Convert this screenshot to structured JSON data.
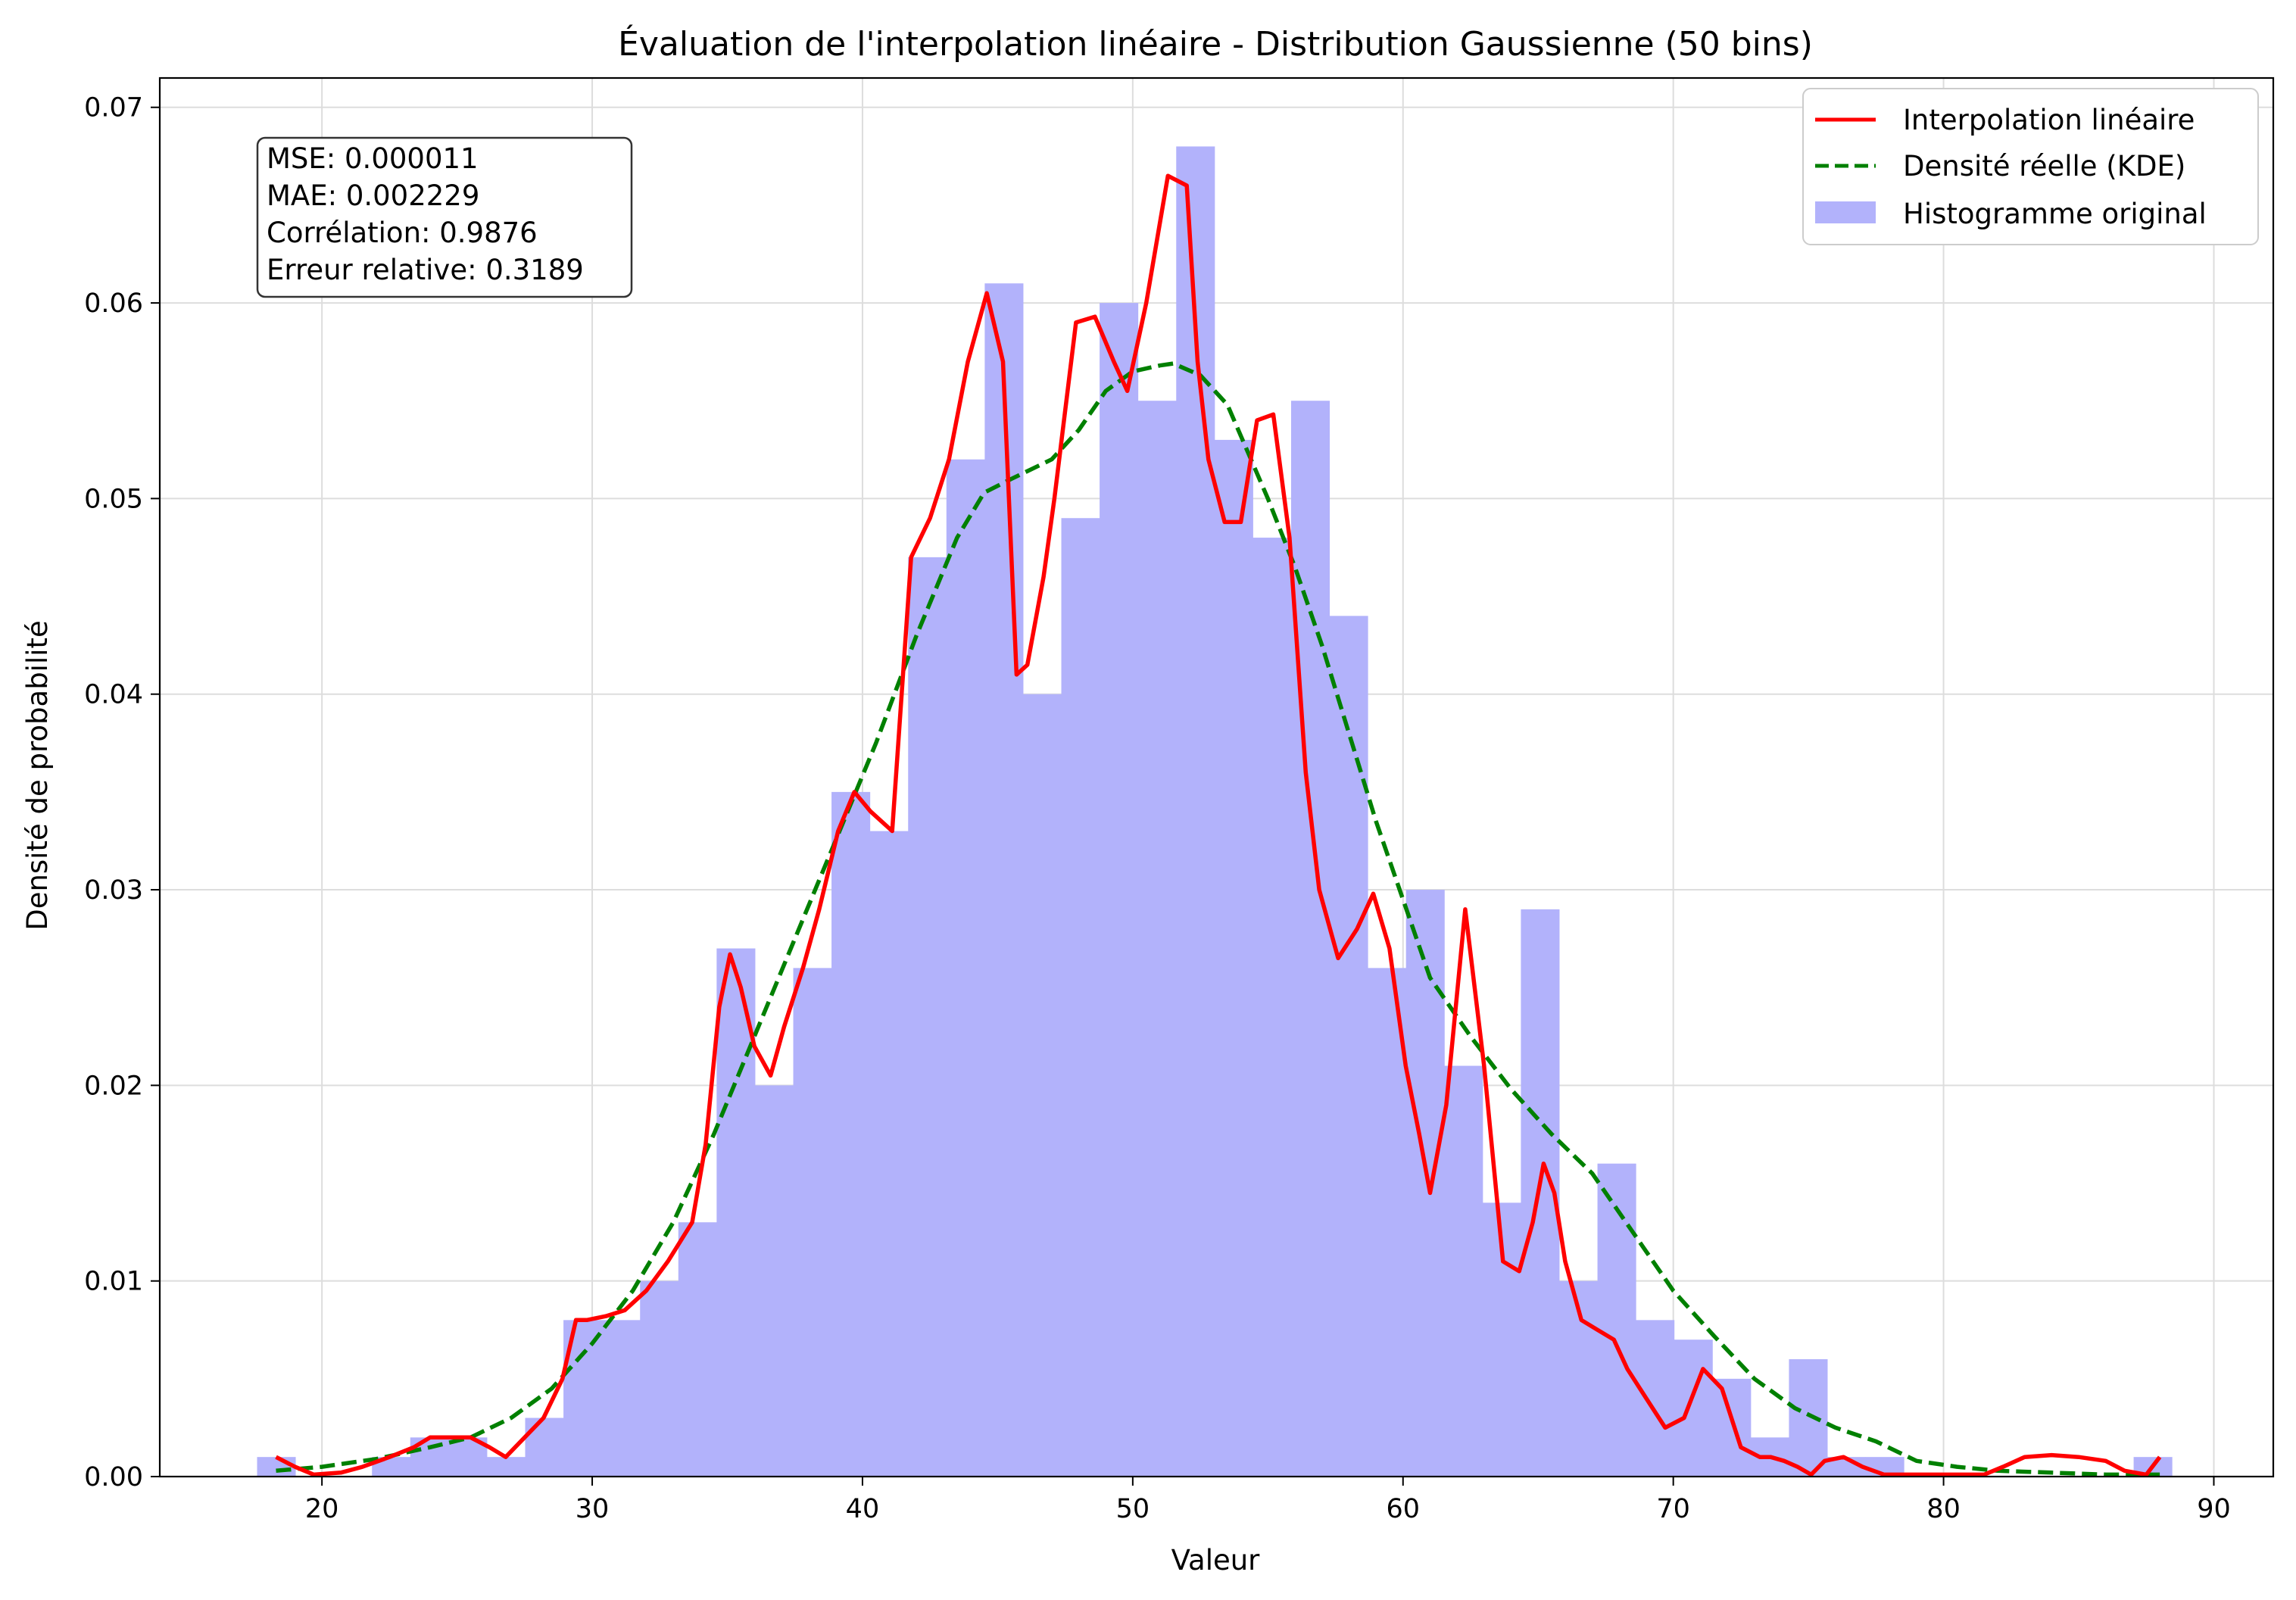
{
  "chart_data": {
    "type": "bar",
    "title": "Évaluation de l'interpolation linéaire - Distribution Gaussienne (50 bins)",
    "xlabel": "Valeur",
    "ylabel": "Densité de probabilité",
    "xlim": [
      14.0,
      92.2
    ],
    "ylim": [
      0,
      0.0715
    ],
    "x_ticks": [
      20,
      30,
      40,
      50,
      60,
      70,
      80,
      90
    ],
    "y_ticks": [
      0.0,
      0.01,
      0.02,
      0.03,
      0.04,
      0.05,
      0.06,
      0.07
    ],
    "grid": true,
    "legend_position": "top-right",
    "stats_box": {
      "lines": [
        "MSE: 0.000011",
        "MAE: 0.002229",
        "Corrélation: 0.9876",
        "Erreur relative: 0.3189"
      ],
      "position": "top-left"
    },
    "histogram": {
      "name": "Histogramme original",
      "color": "#b2b2fb",
      "bin_start": 17.6,
      "bin_width": 1.417,
      "values": [
        0.001,
        0.0,
        0.0,
        0.001,
        0.002,
        0.002,
        0.001,
        0.003,
        0.008,
        0.008,
        0.01,
        0.013,
        0.027,
        0.02,
        0.026,
        0.035,
        0.033,
        0.047,
        0.052,
        0.061,
        0.04,
        0.049,
        0.06,
        0.055,
        0.068,
        0.053,
        0.048,
        0.055,
        0.044,
        0.026,
        0.03,
        0.021,
        0.014,
        0.029,
        0.01,
        0.016,
        0.008,
        0.007,
        0.005,
        0.002,
        0.006,
        0.001,
        0.001,
        0.0,
        0.0,
        0.0,
        0.0,
        0.0,
        0.0,
        0.001
      ]
    },
    "series": [
      {
        "name": "Interpolation linéaire",
        "color": "#ff0000",
        "style": "solid",
        "x": [
          18.3,
          19.0,
          19.7,
          20.7,
          21.5,
          22.5,
          23.4,
          24.0,
          24.7,
          25.5,
          26.2,
          26.8,
          27.5,
          28.2,
          28.9,
          29.4,
          29.8,
          30.5,
          31.2,
          32.0,
          32.8,
          33.7,
          34.2,
          34.7,
          35.1,
          35.5,
          36.0,
          36.6,
          37.1,
          37.8,
          38.4,
          39.1,
          39.7,
          40.3,
          41.1,
          41.8,
          42.5,
          43.2,
          43.9,
          44.6,
          45.2,
          45.7,
          46.1,
          46.7,
          47.1,
          47.9,
          48.6,
          49.3,
          49.8,
          50.5,
          51.3,
          52.0,
          52.4,
          52.8,
          53.4,
          54.0,
          54.6,
          55.2,
          55.8,
          56.4,
          56.9,
          57.6,
          58.3,
          58.9,
          59.5,
          60.1,
          60.6,
          61.0,
          61.6,
          62.3,
          63.0,
          63.7,
          64.3,
          64.8,
          65.2,
          65.6,
          66.0,
          66.6,
          67.2,
          67.8,
          68.3,
          69.0,
          69.7,
          70.4,
          71.1,
          71.8,
          72.5,
          73.2,
          73.6,
          74.1,
          74.6,
          75.1,
          75.6,
          76.3,
          77.0,
          77.8,
          78.5,
          79.3,
          80.0,
          80.7,
          81.5,
          82.2,
          83.0,
          84.0,
          85.0,
          86.0,
          86.7,
          87.5,
          88.0
        ],
        "y": [
          0.001,
          0.0005,
          0.0001,
          0.0002,
          0.0005,
          0.001,
          0.0015,
          0.002,
          0.002,
          0.002,
          0.0015,
          0.001,
          0.002,
          0.003,
          0.005,
          0.008,
          0.008,
          0.0082,
          0.0085,
          0.0095,
          0.011,
          0.013,
          0.017,
          0.024,
          0.0267,
          0.025,
          0.022,
          0.0205,
          0.023,
          0.026,
          0.029,
          0.033,
          0.035,
          0.034,
          0.033,
          0.047,
          0.049,
          0.052,
          0.057,
          0.0605,
          0.057,
          0.041,
          0.0415,
          0.046,
          0.05,
          0.059,
          0.0593,
          0.057,
          0.0555,
          0.06,
          0.0665,
          0.066,
          0.057,
          0.052,
          0.0488,
          0.0488,
          0.054,
          0.0543,
          0.048,
          0.036,
          0.03,
          0.0265,
          0.028,
          0.0298,
          0.027,
          0.021,
          0.0175,
          0.0145,
          0.019,
          0.029,
          0.021,
          0.011,
          0.0105,
          0.013,
          0.016,
          0.0145,
          0.011,
          0.008,
          0.0075,
          0.007,
          0.0055,
          0.004,
          0.0025,
          0.003,
          0.0055,
          0.0045,
          0.0015,
          0.001,
          0.001,
          0.0008,
          0.0005,
          0.0001,
          0.0008,
          0.001,
          0.0005,
          0.0001,
          0.0001,
          0.0001,
          0.0001,
          0.0001,
          0.0001,
          0.0005,
          0.001,
          0.0011,
          0.001,
          0.0008,
          0.0003,
          0.0001,
          0.001
        ]
      },
      {
        "name": "Densité réelle (KDE)",
        "color": "#008000",
        "style": "dashed",
        "x": [
          18.3,
          20.0,
          22.0,
          24.0,
          25.5,
          27.0,
          28.5,
          30.0,
          31.5,
          33.0,
          34.5,
          36.0,
          37.5,
          39.0,
          40.5,
          42.0,
          43.5,
          44.5,
          45.5,
          47.0,
          48.0,
          49.0,
          50.0,
          51.0,
          51.5,
          52.5,
          53.5,
          55.0,
          56.0,
          57.0,
          58.0,
          59.0,
          60.0,
          61.0,
          62.5,
          64.0,
          65.5,
          67.0,
          68.0,
          69.0,
          70.0,
          71.5,
          73.0,
          74.5,
          76.0,
          77.5,
          79.0,
          80.5,
          82.0,
          84.0,
          86.0,
          88.0
        ],
        "y": [
          0.0003,
          0.0005,
          0.0009,
          0.0015,
          0.002,
          0.003,
          0.0045,
          0.0068,
          0.0095,
          0.013,
          0.0175,
          0.0225,
          0.0275,
          0.0325,
          0.0375,
          0.043,
          0.048,
          0.0503,
          0.051,
          0.052,
          0.0535,
          0.0555,
          0.0565,
          0.0568,
          0.0569,
          0.0563,
          0.0548,
          0.05,
          0.0465,
          0.0425,
          0.038,
          0.0335,
          0.0295,
          0.0255,
          0.0225,
          0.0198,
          0.0175,
          0.0155,
          0.0135,
          0.0115,
          0.0095,
          0.0072,
          0.005,
          0.0035,
          0.0025,
          0.0018,
          0.0008,
          0.0005,
          0.0003,
          0.0002,
          0.0001,
          0.0001
        ]
      }
    ]
  }
}
